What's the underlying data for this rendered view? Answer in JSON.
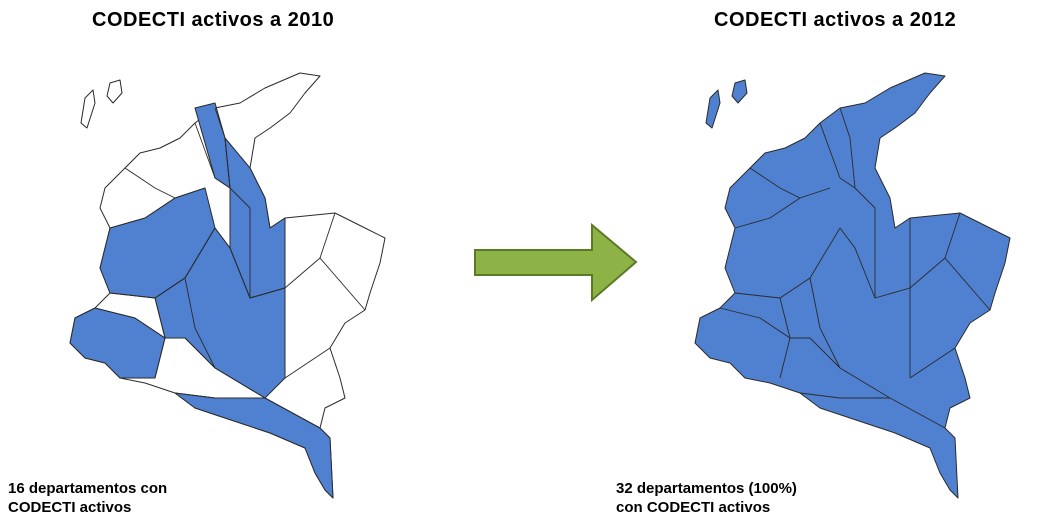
{
  "panels": [
    {
      "title": "CODECTI activos a 2010",
      "caption_lines": [
        "16 departamentos con",
        "CODECTI activos"
      ]
    },
    {
      "title": "CODECTI activos a 2012",
      "caption_lines": [
        "32 departamentos (100%)",
        "con CODECTI activos"
      ]
    }
  ]
}
